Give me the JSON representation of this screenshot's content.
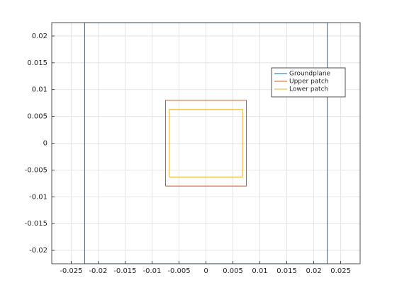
{
  "chart_data": {
    "type": "line",
    "series": [
      {
        "name": "Groundplane",
        "color": "#0072bd",
        "x": [
          -0.0225,
          0.0225,
          0.0225,
          -0.0225,
          -0.0225
        ],
        "values": [
          -0.0225,
          -0.0225,
          0.0225,
          0.0225,
          -0.0225
        ]
      },
      {
        "name": "Upper patch",
        "color": "#d95319",
        "x": [
          -0.0075,
          0.0075,
          0.0075,
          -0.0075,
          -0.0075
        ],
        "values": [
          -0.008,
          -0.008,
          0.008,
          0.008,
          -0.008
        ]
      },
      {
        "name": "Lower patch",
        "color": "#edb120",
        "x": [
          -0.0068,
          0.0068,
          0.0068,
          -0.0068,
          -0.0068
        ],
        "values": [
          -0.0063,
          -0.0063,
          0.0063,
          0.0063,
          -0.0063
        ]
      }
    ],
    "xlim": [
      -0.0286,
      0.0286
    ],
    "ylim": [
      -0.0225,
      0.0225
    ],
    "xticks": [
      -0.025,
      -0.02,
      -0.015,
      -0.01,
      -0.005,
      0,
      0.005,
      0.01,
      0.015,
      0.02,
      0.025
    ],
    "yticks": [
      -0.02,
      -0.015,
      -0.01,
      -0.005,
      0,
      0.005,
      0.01,
      0.015,
      0.02
    ],
    "grid": true,
    "legend": "northeast"
  }
}
